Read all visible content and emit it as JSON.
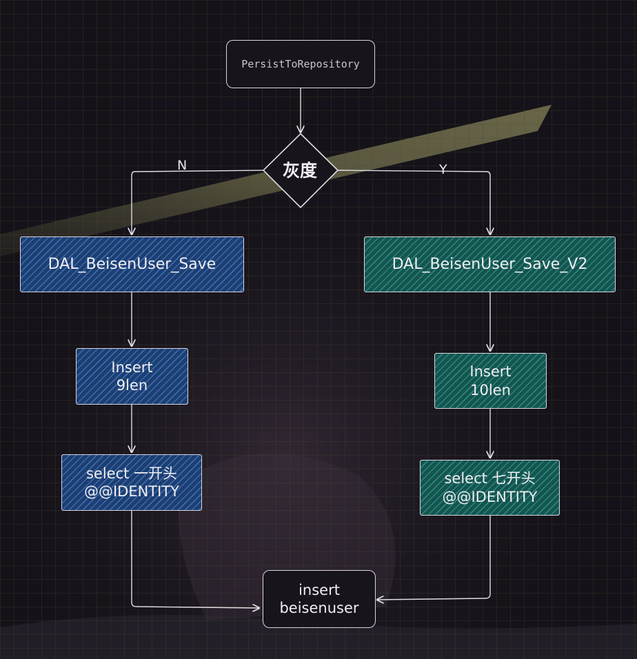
{
  "nodes": {
    "start": "PersistToRepository",
    "decision": "灰度",
    "left_proc": "DAL_BeisenUser_Save",
    "right_proc": "DAL_BeisenUser_Save_V2",
    "left_insert": [
      "Insert",
      "9len"
    ],
    "right_insert": [
      "Insert",
      "10len"
    ],
    "left_select": [
      "select 一开头",
      "@@IDENTITY"
    ],
    "right_select": [
      "select 七开头",
      "@@IDENTITY"
    ],
    "end": [
      "insert",
      "beisenuser"
    ]
  },
  "edges": {
    "no_label": "N",
    "yes_label": "Y"
  },
  "colors": {
    "background": "#151219",
    "grid": "#4a4a2a",
    "left_fill": "#1c3f73",
    "right_fill": "#145550",
    "stroke": "#d9d6dd"
  }
}
